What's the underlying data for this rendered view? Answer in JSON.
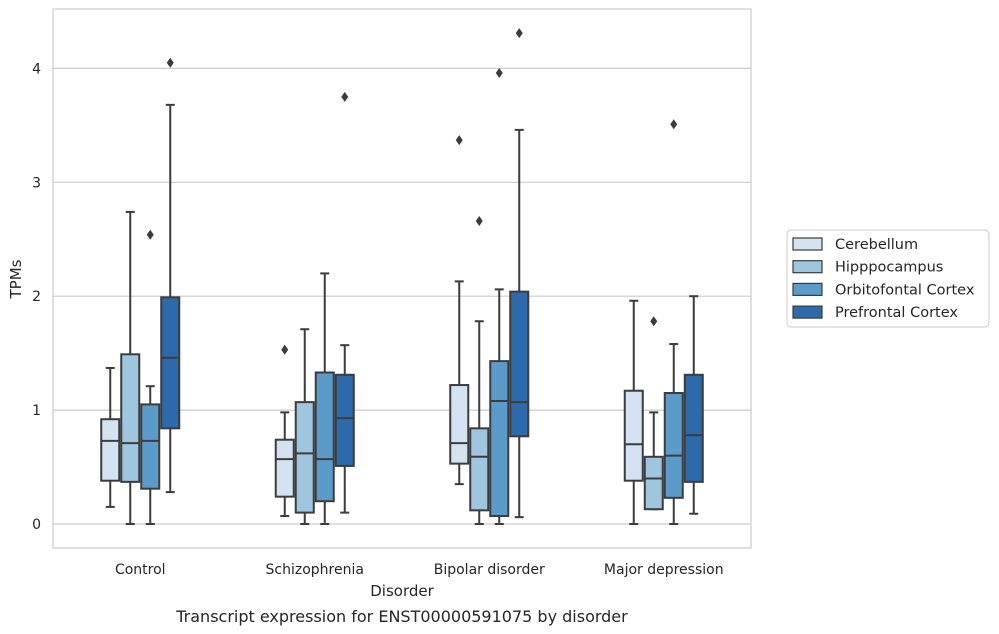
{
  "chart_data": {
    "type": "box",
    "xlabel": "Disorder",
    "ylabel": "TPMs",
    "caption": "Transcript expression for ENST00000591075 by disorder",
    "ylim": [
      -0.2,
      4.5
    ],
    "yticks": [
      0,
      1,
      2,
      3,
      4
    ],
    "grid": "horizontal",
    "legend_position": "right",
    "categories": [
      "Control",
      "Schizophrenia",
      "Bipolar disorder",
      "Major depression"
    ],
    "series": [
      {
        "name": "Cerebellum",
        "color": "#d4e3f2",
        "boxes": [
          {
            "whislo": 0.15,
            "q1": 0.38,
            "med": 0.73,
            "q3": 0.92,
            "whishi": 1.37,
            "fliers": []
          },
          {
            "whislo": 0.07,
            "q1": 0.24,
            "med": 0.57,
            "q3": 0.74,
            "whishi": 0.98,
            "fliers": [
              1.53
            ]
          },
          {
            "whislo": 0.35,
            "q1": 0.53,
            "med": 0.71,
            "q3": 1.22,
            "whishi": 2.13,
            "fliers": [
              3.37
            ]
          },
          {
            "whislo": 0.0,
            "q1": 0.38,
            "med": 0.7,
            "q3": 1.17,
            "whishi": 1.96,
            "fliers": []
          }
        ]
      },
      {
        "name": "Hipppocampus",
        "color": "#9fc5df",
        "boxes": [
          {
            "whislo": 0.0,
            "q1": 0.37,
            "med": 0.71,
            "q3": 1.49,
            "whishi": 2.74,
            "fliers": []
          },
          {
            "whislo": 0.0,
            "q1": 0.1,
            "med": 0.62,
            "q3": 1.07,
            "whishi": 1.71,
            "fliers": []
          },
          {
            "whislo": 0.0,
            "q1": 0.12,
            "med": 0.59,
            "q3": 0.84,
            "whishi": 1.78,
            "fliers": [
              2.66
            ]
          },
          {
            "whislo": 0.13,
            "q1": 0.13,
            "med": 0.4,
            "q3": 0.59,
            "whishi": 0.98,
            "fliers": [
              1.78
            ]
          }
        ]
      },
      {
        "name": "Orbitofontal Cortex",
        "color": "#5b9bc9",
        "boxes": [
          {
            "whislo": 0.0,
            "q1": 0.31,
            "med": 0.73,
            "q3": 1.05,
            "whishi": 1.21,
            "fliers": [
              2.54
            ]
          },
          {
            "whislo": 0.0,
            "q1": 0.2,
            "med": 0.57,
            "q3": 1.33,
            "whishi": 2.2,
            "fliers": []
          },
          {
            "whislo": 0.0,
            "q1": 0.07,
            "med": 1.08,
            "q3": 1.43,
            "whishi": 2.06,
            "fliers": [
              3.96
            ]
          },
          {
            "whislo": 0.0,
            "q1": 0.23,
            "med": 0.6,
            "q3": 1.15,
            "whishi": 1.58,
            "fliers": [
              3.51
            ]
          }
        ]
      },
      {
        "name": "Prefrontal Cortex",
        "color": "#2c6aab",
        "boxes": [
          {
            "whislo": 0.28,
            "q1": 0.84,
            "med": 1.46,
            "q3": 1.99,
            "whishi": 3.68,
            "fliers": [
              4.05
            ]
          },
          {
            "whislo": 0.1,
            "q1": 0.51,
            "med": 0.93,
            "q3": 1.31,
            "whishi": 1.57,
            "fliers": [
              3.75
            ]
          },
          {
            "whislo": 0.06,
            "q1": 0.77,
            "med": 1.07,
            "q3": 2.04,
            "whishi": 3.46,
            "fliers": [
              4.31
            ]
          },
          {
            "whislo": 0.09,
            "q1": 0.37,
            "med": 0.78,
            "q3": 1.31,
            "whishi": 2.0,
            "fliers": []
          }
        ]
      }
    ]
  }
}
